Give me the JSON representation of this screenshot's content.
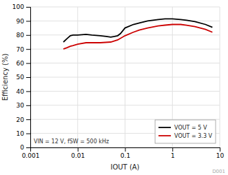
{
  "chart_data": {
    "type": "line",
    "title": "",
    "x_label": "IOUT (A)",
    "y_label": "Efficiency (%)",
    "annotation": "VIN = 12 V, fSW = 500 kHz",
    "watermark": "D001",
    "log": "x",
    "grid": true,
    "legend": "lower right",
    "xlim": [
      0.001,
      10
    ],
    "xticks": [
      0.001,
      0.01,
      0.1,
      1,
      10
    ],
    "ylim": [
      0,
      100
    ],
    "yticks": [
      0,
      10,
      20,
      30,
      40,
      50,
      60,
      70,
      80,
      90,
      100
    ],
    "series": [
      {
        "name": "VOUT = 5 V",
        "color": "#000000",
        "x": [
          0.005,
          0.006,
          0.007,
          0.008,
          0.01,
          0.015,
          0.02,
          0.03,
          0.04,
          0.05,
          0.06,
          0.07,
          0.08,
          0.1,
          0.15,
          0.2,
          0.3,
          0.5,
          0.7,
          1.0,
          1.5,
          2.0,
          3.0,
          5.0,
          7.0
        ],
        "values": [
          75.0,
          77.5,
          79.5,
          80.0,
          80.0,
          80.5,
          80.0,
          79.5,
          79.0,
          78.5,
          79.0,
          79.5,
          81.0,
          85.0,
          87.5,
          88.5,
          90.0,
          91.0,
          91.5,
          91.5,
          91.0,
          90.5,
          89.5,
          87.5,
          85.5
        ]
      },
      {
        "name": "VOUT = 3.3 V",
        "color": "#cc0000",
        "x": [
          0.005,
          0.006,
          0.007,
          0.008,
          0.01,
          0.015,
          0.02,
          0.03,
          0.05,
          0.07,
          0.1,
          0.15,
          0.2,
          0.3,
          0.5,
          0.7,
          1.0,
          1.5,
          2.0,
          3.0,
          5.0,
          7.0
        ],
        "values": [
          70.0,
          71.0,
          72.0,
          72.5,
          73.5,
          74.5,
          74.5,
          74.5,
          75.0,
          76.5,
          79.5,
          82.0,
          83.5,
          85.0,
          86.5,
          87.0,
          87.5,
          87.5,
          87.0,
          86.0,
          84.0,
          82.0
        ]
      }
    ]
  }
}
